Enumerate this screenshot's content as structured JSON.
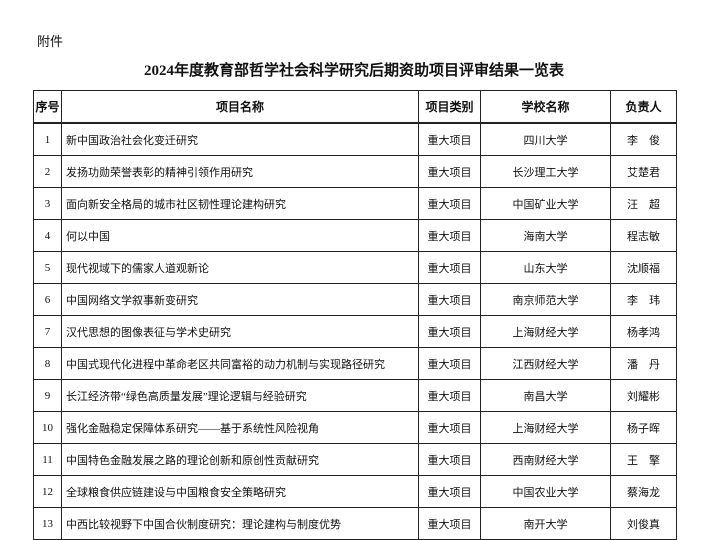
{
  "header": {
    "annex": "附件",
    "title": "2024年度教育部哲学社会科学研究后期资助项目评审结果一览表"
  },
  "table": {
    "columns": [
      "序号",
      "项目名称",
      "项目类别",
      "学校名称",
      "负责人"
    ],
    "rows": [
      [
        "1",
        "新中国政治社会化变迁研究",
        "重大项目",
        "四川大学",
        "李　俊"
      ],
      [
        "2",
        "发扬功勋荣誉表彰的精神引领作用研究",
        "重大项目",
        "长沙理工大学",
        "艾楚君"
      ],
      [
        "3",
        "面向新安全格局的城市社区韧性理论建构研究",
        "重大项目",
        "中国矿业大学",
        "汪　超"
      ],
      [
        "4",
        "何以中国",
        "重大项目",
        "海南大学",
        "程志敏"
      ],
      [
        "5",
        "现代视域下的儒家人道观新论",
        "重大项目",
        "山东大学",
        "沈顺福"
      ],
      [
        "6",
        "中国网络文学叙事新变研究",
        "重大项目",
        "南京师范大学",
        "李　玮"
      ],
      [
        "7",
        "汉代思想的图像表征与学术史研究",
        "重大项目",
        "上海财经大学",
        "杨孝鸿"
      ],
      [
        "8",
        "中国式现代化进程中革命老区共同富裕的动力机制与实现路径研究",
        "重大项目",
        "江西财经大学",
        "潘　丹"
      ],
      [
        "9",
        "长江经济带“绿色高质量发展”理论逻辑与经验研究",
        "重大项目",
        "南昌大学",
        "刘耀彬"
      ],
      [
        "10",
        "强化金融稳定保障体系研究——基于系统性风险视角",
        "重大项目",
        "上海财经大学",
        "杨子晖"
      ],
      [
        "11",
        "中国特色金融发展之路的理论创新和原创性贡献研究",
        "重大项目",
        "西南财经大学",
        "王　擎"
      ],
      [
        "12",
        "全球粮食供应链建设与中国粮食安全策略研究",
        "重大项目",
        "中国农业大学",
        "蔡海龙"
      ],
      [
        "13",
        "中西比较视野下中国合伙制度研究：理论建构与制度优势",
        "重大项目",
        "南开大学",
        "刘俊真"
      ]
    ]
  }
}
